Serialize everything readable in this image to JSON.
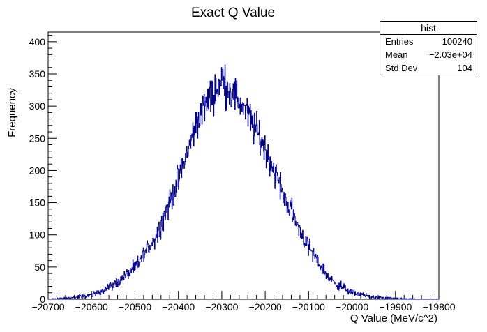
{
  "chart_data": {
    "type": "bar",
    "title": "Exact Q Value",
    "xlabel": "Q Value (MeV/c^2)",
    "ylabel": "Frequency",
    "xlim": [
      -20700,
      -19800
    ],
    "ylim": [
      0,
      415
    ],
    "x_ticks": [
      "−20700",
      "−20600",
      "−20500",
      "−20400",
      "−20300",
      "−20200",
      "−20100",
      "−20000",
      "−19900",
      "−19800"
    ],
    "y_ticks": [
      "0",
      "50",
      "100",
      "150",
      "200",
      "250",
      "300",
      "350",
      "400"
    ],
    "line_color": "#00008b",
    "histogram_style": "step",
    "bin_width": 1,
    "distribution": "approximately gaussian",
    "stats": {
      "name": "hist",
      "entries": "100240",
      "mean": "−2.03e+04",
      "std_dev": "104"
    },
    "sampled_envelope": {
      "x": [
        -20700,
        -20650,
        -20600,
        -20550,
        -20500,
        -20450,
        -20400,
        -20350,
        -20300,
        -20250,
        -20200,
        -20150,
        -20100,
        -20050,
        -20000,
        -19950,
        -19900,
        -19850
      ],
      "y": [
        0,
        2,
        6,
        22,
        48,
        100,
        185,
        290,
        340,
        300,
        235,
        150,
        80,
        30,
        10,
        3,
        1,
        0
      ]
    }
  }
}
